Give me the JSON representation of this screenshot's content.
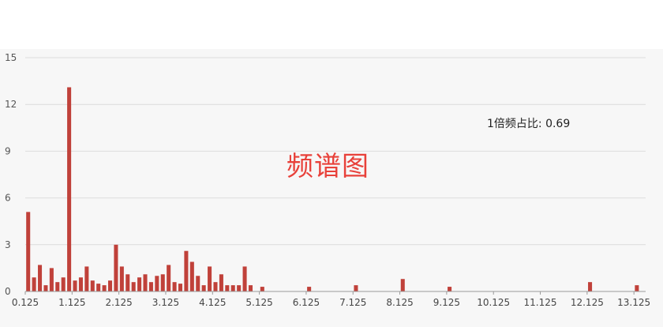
{
  "chart_data": {
    "type": "bar",
    "title": "频谱图",
    "annotation": "1倍频占比: 0.69",
    "xlabel": "",
    "ylabel": "",
    "ylim": [
      0,
      15
    ],
    "y_ticks": [
      0,
      3,
      6,
      9,
      12,
      15
    ],
    "x_tick_labels": [
      "0.125",
      "1.125",
      "2.125",
      "3.125",
      "4.125",
      "5.125",
      "6.125",
      "7.125",
      "8.125",
      "9.125",
      "10.125",
      "11.125",
      "12.125",
      "13.125"
    ],
    "x_tick_values": [
      0.125,
      1.125,
      2.125,
      3.125,
      4.125,
      5.125,
      6.125,
      7.125,
      8.125,
      9.125,
      10.125,
      11.125,
      12.125,
      13.125
    ],
    "xlim": [
      0.125,
      13.375
    ],
    "bar_color": "#c0413a",
    "grid": true,
    "series": [
      {
        "x": [
          0.125,
          0.25,
          0.375,
          0.5,
          0.625,
          0.75,
          0.875,
          1.0,
          1.125,
          1.25,
          1.375,
          1.5,
          1.625,
          1.75,
          1.875,
          2.0,
          2.125,
          2.25,
          2.375,
          2.5,
          2.625,
          2.75,
          2.875,
          3.0,
          3.125,
          3.25,
          3.375,
          3.5,
          3.625,
          3.75,
          3.875,
          4.0,
          4.125,
          4.25,
          4.375,
          4.5,
          4.625,
          4.75,
          4.875,
          5.125,
          6.125,
          7.125,
          8.125,
          9.125,
          12.125,
          13.125
        ],
        "values": [
          5.1,
          0.9,
          1.7,
          0.4,
          1.5,
          0.6,
          0.9,
          13.1,
          0.7,
          0.9,
          1.6,
          0.7,
          0.5,
          0.4,
          0.7,
          3.0,
          1.6,
          1.1,
          0.6,
          0.9,
          1.1,
          0.6,
          1.0,
          1.1,
          1.7,
          0.6,
          0.5,
          2.6,
          1.9,
          1.0,
          0.4,
          1.6,
          0.6,
          1.1,
          0.4,
          0.4,
          0.4,
          1.6,
          0.4,
          0.3,
          0.3,
          0.4,
          0.8,
          0.3,
          0.6,
          0.4
        ]
      }
    ]
  }
}
